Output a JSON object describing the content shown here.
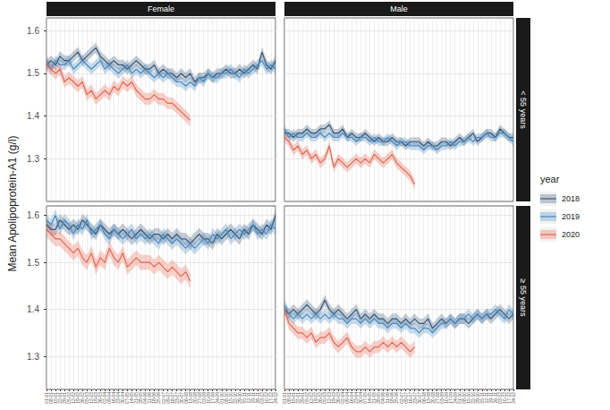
{
  "chart_data": {
    "type": "line",
    "ylabel": "Mean Apolipoprotein-A1 (g/l)",
    "legend": "right",
    "legend_title": "year",
    "grid": true,
    "years": [
      {
        "name": "2018",
        "color": "#3a5a78"
      },
      {
        "name": "2019",
        "color": "#4b8cc0"
      },
      {
        "name": "2020",
        "color": "#e8664f"
      }
    ],
    "categories": [
      "01-01",
      "08-01",
      "15-01",
      "22-01",
      "29-01",
      "05-02",
      "12-02",
      "19-02",
      "26-02",
      "05-03",
      "12-03",
      "19-03",
      "26-03",
      "02-04",
      "09-04",
      "16-04",
      "23-04",
      "30-04",
      "07-05",
      "14-05",
      "21-05",
      "28-05",
      "04-06",
      "11-06",
      "18-06",
      "25-06",
      "02-07",
      "09-07",
      "16-07",
      "23-07",
      "30-07",
      "06-08",
      "13-08",
      "20-08",
      "27-08",
      "03-09",
      "10-09",
      "17-09",
      "24-09",
      "01-10",
      "08-10",
      "15-10",
      "22-10",
      "29-10",
      "05-11",
      "12-11",
      "19-11",
      "26-11",
      "03-12",
      "10-12",
      "17-12",
      "24-12"
    ],
    "columns": [
      "Female",
      "Male"
    ],
    "rows": [
      {
        "label": "< 55 years",
        "ylim": [
          1.2,
          1.63
        ],
        "yticks": [
          1.3,
          1.4,
          1.5,
          1.6
        ]
      },
      {
        "label": "≥ 55 years",
        "ylim": [
          1.23,
          1.62
        ],
        "yticks": [
          1.3,
          1.4,
          1.5,
          1.6
        ]
      }
    ],
    "panels": [
      {
        "column": "Female",
        "row": "< 55 years",
        "series": [
          {
            "name": "2018",
            "error": 0.012,
            "values": [
              1.52,
              1.53,
              1.52,
              1.54,
              1.53,
              1.53,
              1.54,
              1.55,
              1.53,
              1.54,
              1.55,
              1.56,
              1.54,
              1.53,
              1.52,
              1.53,
              1.52,
              1.52,
              1.51,
              1.52,
              1.53,
              1.52,
              1.51,
              1.51,
              1.52,
              1.5,
              1.51,
              1.5,
              1.5,
              1.49,
              1.5,
              1.49,
              1.5,
              1.48,
              1.49,
              1.49,
              1.5,
              1.49,
              1.5,
              1.5,
              1.51,
              1.5,
              1.5,
              1.51,
              1.5,
              1.51,
              1.52,
              1.51,
              1.55,
              1.52,
              1.51,
              1.53
            ]
          },
          {
            "name": "2019",
            "error": 0.012,
            "values": [
              1.53,
              1.51,
              1.53,
              1.52,
              1.52,
              1.53,
              1.51,
              1.52,
              1.53,
              1.52,
              1.51,
              1.52,
              1.53,
              1.51,
              1.52,
              1.51,
              1.5,
              1.51,
              1.52,
              1.5,
              1.51,
              1.5,
              1.51,
              1.5,
              1.49,
              1.5,
              1.49,
              1.5,
              1.49,
              1.48,
              1.48,
              1.47,
              1.48,
              1.47,
              1.49,
              1.48,
              1.5,
              1.49,
              1.49,
              1.5,
              1.5,
              1.51,
              1.5,
              1.49,
              1.51,
              1.5,
              1.51,
              1.52,
              1.53,
              1.51,
              1.52,
              1.51
            ]
          },
          {
            "name": "2020",
            "error": 0.014,
            "values": [
              1.52,
              1.51,
              1.5,
              1.51,
              1.48,
              1.49,
              1.48,
              1.47,
              1.48,
              1.45,
              1.46,
              1.44,
              1.45,
              1.46,
              1.45,
              1.47,
              1.46,
              1.48,
              1.47,
              1.48,
              1.46,
              1.45,
              1.44,
              1.44,
              1.45,
              1.44,
              1.44,
              1.43,
              1.43,
              1.42,
              1.41,
              1.4,
              1.39,
              null,
              null,
              null,
              null,
              null,
              null,
              null,
              null,
              null,
              null,
              null,
              null,
              null,
              null,
              null,
              null,
              null,
              null,
              null
            ]
          }
        ]
      },
      {
        "column": "Male",
        "row": "< 55 years",
        "series": [
          {
            "name": "2018",
            "error": 0.01,
            "values": [
              1.36,
              1.36,
              1.35,
              1.36,
              1.36,
              1.37,
              1.36,
              1.36,
              1.37,
              1.37,
              1.38,
              1.36,
              1.36,
              1.37,
              1.35,
              1.36,
              1.35,
              1.35,
              1.36,
              1.35,
              1.34,
              1.35,
              1.34,
              1.34,
              1.35,
              1.34,
              1.34,
              1.33,
              1.34,
              1.34,
              1.34,
              1.33,
              1.34,
              1.33,
              1.33,
              1.34,
              1.34,
              1.33,
              1.34,
              1.35,
              1.34,
              1.35,
              1.36,
              1.34,
              1.35,
              1.36,
              1.36,
              1.35,
              1.37,
              1.36,
              1.35,
              1.35
            ]
          },
          {
            "name": "2019",
            "error": 0.01,
            "values": [
              1.37,
              1.35,
              1.36,
              1.35,
              1.35,
              1.36,
              1.35,
              1.35,
              1.36,
              1.35,
              1.36,
              1.35,
              1.35,
              1.36,
              1.35,
              1.35,
              1.34,
              1.35,
              1.35,
              1.34,
              1.35,
              1.34,
              1.34,
              1.35,
              1.34,
              1.33,
              1.34,
              1.34,
              1.33,
              1.33,
              1.33,
              1.32,
              1.33,
              1.33,
              1.32,
              1.33,
              1.33,
              1.34,
              1.33,
              1.34,
              1.34,
              1.35,
              1.34,
              1.35,
              1.35,
              1.36,
              1.35,
              1.35,
              1.36,
              1.36,
              1.35,
              1.34
            ]
          },
          {
            "name": "2020",
            "error": 0.012,
            "values": [
              1.35,
              1.34,
              1.32,
              1.33,
              1.31,
              1.32,
              1.3,
              1.31,
              1.29,
              1.3,
              1.33,
              1.28,
              1.3,
              1.29,
              1.28,
              1.29,
              1.3,
              1.29,
              1.3,
              1.29,
              1.31,
              1.3,
              1.29,
              1.3,
              1.31,
              1.29,
              1.28,
              1.27,
              1.26,
              1.24,
              null,
              null,
              null,
              null,
              null,
              null,
              null,
              null,
              null,
              null,
              null,
              null,
              null,
              null,
              null,
              null,
              null,
              null,
              null,
              null,
              null,
              null
            ]
          }
        ]
      },
      {
        "column": "Female",
        "row": "≥ 55 years",
        "series": [
          {
            "name": "2018",
            "error": 0.013,
            "values": [
              1.58,
              1.57,
              1.57,
              1.59,
              1.58,
              1.57,
              1.58,
              1.57,
              1.59,
              1.58,
              1.57,
              1.56,
              1.58,
              1.57,
              1.56,
              1.57,
              1.56,
              1.57,
              1.56,
              1.55,
              1.56,
              1.57,
              1.56,
              1.55,
              1.56,
              1.56,
              1.55,
              1.56,
              1.55,
              1.56,
              1.55,
              1.55,
              1.54,
              1.55,
              1.56,
              1.55,
              1.55,
              1.54,
              1.56,
              1.55,
              1.56,
              1.57,
              1.56,
              1.55,
              1.57,
              1.56,
              1.58,
              1.57,
              1.56,
              1.58,
              1.57,
              1.6
            ]
          },
          {
            "name": "2019",
            "error": 0.013,
            "values": [
              1.59,
              1.58,
              1.6,
              1.57,
              1.59,
              1.58,
              1.56,
              1.58,
              1.57,
              1.59,
              1.56,
              1.57,
              1.58,
              1.56,
              1.55,
              1.57,
              1.56,
              1.55,
              1.56,
              1.57,
              1.55,
              1.56,
              1.55,
              1.56,
              1.55,
              1.54,
              1.56,
              1.55,
              1.54,
              1.55,
              1.54,
              1.53,
              1.54,
              1.53,
              1.54,
              1.55,
              1.54,
              1.56,
              1.55,
              1.56,
              1.57,
              1.55,
              1.56,
              1.57,
              1.56,
              1.57,
              1.58,
              1.56,
              1.57,
              1.56,
              1.58,
              1.57
            ]
          },
          {
            "name": "2020",
            "error": 0.016,
            "values": [
              1.57,
              1.56,
              1.55,
              1.55,
              1.54,
              1.53,
              1.52,
              1.53,
              1.51,
              1.5,
              1.52,
              1.49,
              1.51,
              1.5,
              1.53,
              1.51,
              1.5,
              1.52,
              1.49,
              1.5,
              1.51,
              1.5,
              1.5,
              1.5,
              1.49,
              1.5,
              1.49,
              1.48,
              1.49,
              1.48,
              1.47,
              1.48,
              1.46,
              null,
              null,
              null,
              null,
              null,
              null,
              null,
              null,
              null,
              null,
              null,
              null,
              null,
              null,
              null,
              null,
              null,
              null,
              null
            ]
          }
        ]
      },
      {
        "column": "Male",
        "row": "≥ 55 years",
        "series": [
          {
            "name": "2018",
            "error": 0.011,
            "values": [
              1.4,
              1.39,
              1.4,
              1.39,
              1.4,
              1.41,
              1.4,
              1.39,
              1.4,
              1.42,
              1.4,
              1.39,
              1.4,
              1.39,
              1.38,
              1.39,
              1.4,
              1.38,
              1.39,
              1.38,
              1.39,
              1.38,
              1.38,
              1.37,
              1.38,
              1.38,
              1.37,
              1.38,
              1.37,
              1.38,
              1.37,
              1.37,
              1.38,
              1.36,
              1.37,
              1.38,
              1.37,
              1.38,
              1.37,
              1.38,
              1.38,
              1.37,
              1.38,
              1.39,
              1.38,
              1.39,
              1.38,
              1.39,
              1.4,
              1.39,
              1.38,
              1.39
            ]
          },
          {
            "name": "2019",
            "error": 0.011,
            "values": [
              1.41,
              1.39,
              1.38,
              1.39,
              1.38,
              1.39,
              1.38,
              1.39,
              1.38,
              1.39,
              1.38,
              1.39,
              1.38,
              1.38,
              1.37,
              1.38,
              1.38,
              1.37,
              1.38,
              1.37,
              1.38,
              1.37,
              1.37,
              1.36,
              1.37,
              1.37,
              1.36,
              1.37,
              1.36,
              1.36,
              1.35,
              1.36,
              1.36,
              1.35,
              1.36,
              1.37,
              1.37,
              1.38,
              1.37,
              1.38,
              1.38,
              1.39,
              1.38,
              1.39,
              1.38,
              1.39,
              1.39,
              1.4,
              1.39,
              1.38,
              1.4,
              1.39
            ]
          },
          {
            "name": "2020",
            "error": 0.013,
            "values": [
              1.4,
              1.37,
              1.36,
              1.35,
              1.35,
              1.34,
              1.35,
              1.33,
              1.34,
              1.34,
              1.35,
              1.33,
              1.32,
              1.33,
              1.34,
              1.32,
              1.31,
              1.31,
              1.32,
              1.31,
              1.32,
              1.32,
              1.33,
              1.32,
              1.33,
              1.32,
              1.33,
              1.32,
              1.31,
              1.32,
              null,
              null,
              null,
              null,
              null,
              null,
              null,
              null,
              null,
              null,
              null,
              null,
              null,
              null,
              null,
              null,
              null,
              null,
              null,
              null,
              null,
              null
            ]
          }
        ]
      }
    ]
  }
}
